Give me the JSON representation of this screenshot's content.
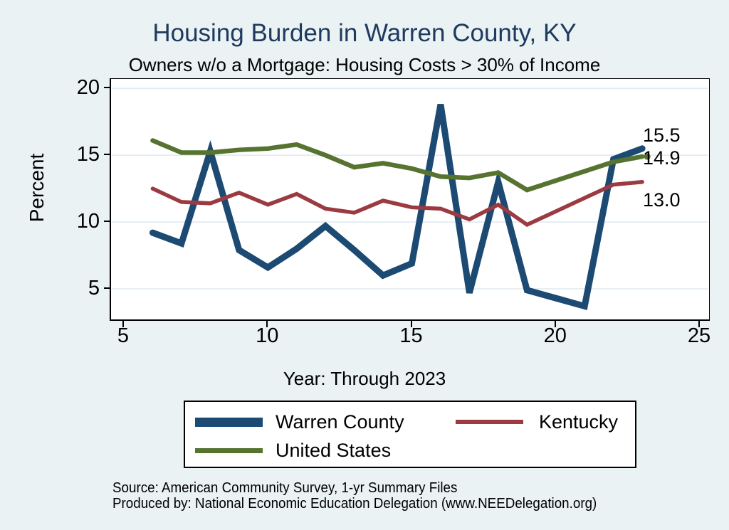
{
  "title": "Housing Burden in Warren County, KY",
  "subtitle": "Owners w/o a Mortgage: Housing Costs > 30% of Income",
  "colors": {
    "background": "#eaf2f3",
    "plot_background": "#ffffff",
    "gridline": "#dfeaf2",
    "title_text": "#1f3a60",
    "warren_county": "#1c4a73",
    "kentucky": "#9c3a42",
    "united_states": "#567430"
  },
  "chart_data": {
    "type": "line",
    "x": [
      6,
      7,
      8,
      9,
      10,
      11,
      12,
      13,
      14,
      15,
      16,
      17,
      18,
      19,
      20,
      21,
      22,
      23
    ],
    "series": [
      {
        "name": "Warren County",
        "color": "#1c4a73",
        "stroke_width": 9,
        "values": [
          9.2,
          8.4,
          15.3,
          7.9,
          6.6,
          8.0,
          9.7,
          7.9,
          6.0,
          6.9,
          18.8,
          4.7,
          13.0,
          4.9,
          4.3,
          3.7,
          14.7,
          15.5
        ],
        "end_label": "15.5",
        "end_dot": false
      },
      {
        "name": "Kentucky",
        "color": "#9c3a42",
        "stroke_width": 5.5,
        "values": [
          12.5,
          11.5,
          11.4,
          12.2,
          11.3,
          12.1,
          11.0,
          10.7,
          11.6,
          11.1,
          11.0,
          10.2,
          11.3,
          9.8,
          10.8,
          11.8,
          12.8,
          13.0
        ],
        "end_label": "13.0",
        "end_dot": false
      },
      {
        "name": "United States",
        "color": "#567430",
        "stroke_width": 6.5,
        "values": [
          16.1,
          15.2,
          15.2,
          15.4,
          15.5,
          15.8,
          15.0,
          14.1,
          14.4,
          14.0,
          13.4,
          13.3,
          13.7,
          12.4,
          13.1,
          13.8,
          14.5,
          14.9
        ],
        "end_label": "14.9",
        "end_dot": true
      }
    ],
    "title": "Housing Burden in Warren County, KY",
    "subtitle": "Owners w/o a Mortgage: Housing Costs > 30% of Income",
    "xlabel": "Year: Through 2023",
    "ylabel": "Percent",
    "xticks": [
      5,
      10,
      15,
      20,
      25
    ],
    "yticks": [
      5,
      10,
      15,
      20
    ],
    "xlim": [
      4.55,
      25.3
    ],
    "ylim": [
      2.7,
      20.7
    ],
    "grid": "horizontal-only",
    "legend_position": "bottom",
    "end_labels": [
      "15.5",
      "14.9",
      "13.0"
    ]
  },
  "legend": {
    "items": [
      {
        "label": "Warren County",
        "series_index": 0
      },
      {
        "label": "Kentucky",
        "series_index": 1
      },
      {
        "label": "United States",
        "series_index": 2
      }
    ]
  },
  "footer": {
    "source_line": "Source: American Community Survey, 1-yr Summary Files",
    "produced_line": "Produced by: National Economic Education Delegation (www.NEEDelegation.org)"
  }
}
